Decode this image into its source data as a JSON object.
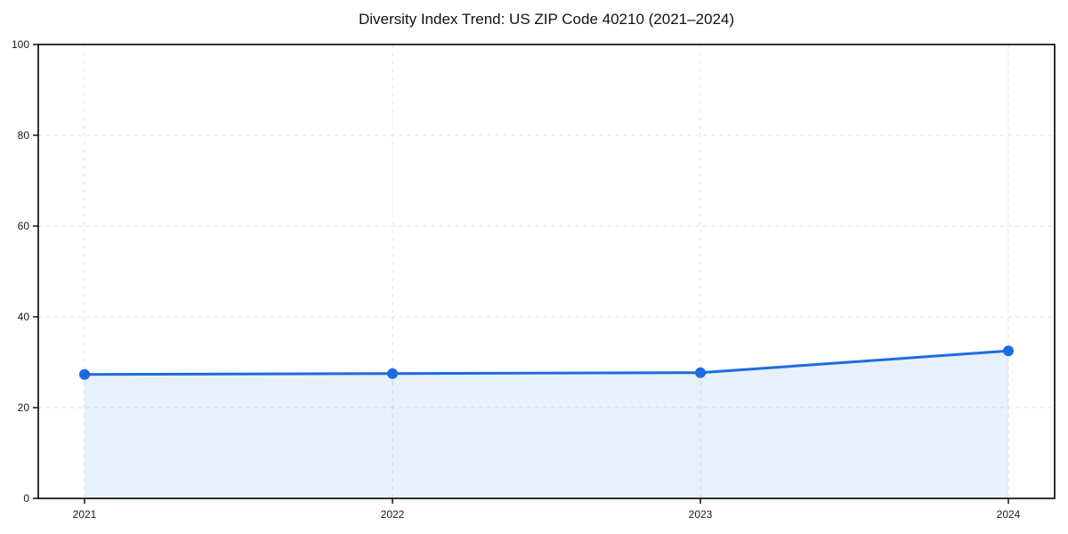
{
  "chart_data": {
    "type": "area",
    "title": "Diversity Index Trend: US ZIP Code 40210 (2021–2024)",
    "categories": [
      "2021",
      "2022",
      "2023",
      "2024"
    ],
    "series": [
      {
        "name": "Diversity Index",
        "values": [
          27.3,
          27.5,
          27.7,
          32.5
        ]
      }
    ],
    "xlabel": "",
    "ylabel": "",
    "ylim": [
      0,
      100
    ],
    "yticks": [
      0,
      20,
      40,
      60,
      80,
      100
    ],
    "grid": true,
    "grid_style": "dashed",
    "legend": false,
    "colors": {
      "line": "#1c6ce0",
      "marker": "#1c6ce0",
      "fill": "#1c6ce0",
      "fill_opacity": 0.1,
      "grid": "#e3e3e3",
      "axis": "#000000",
      "tick_text": "#1a1a1a",
      "background": "#ffffff"
    }
  }
}
